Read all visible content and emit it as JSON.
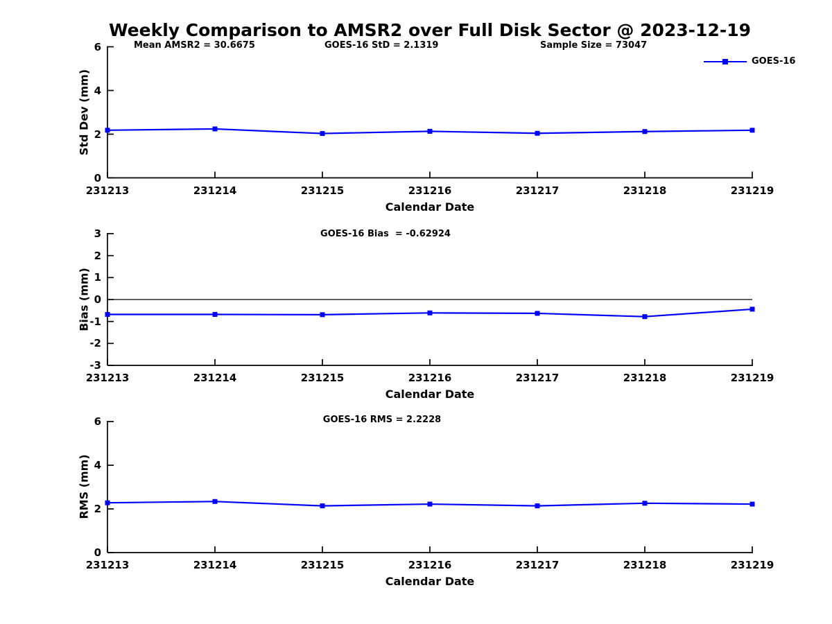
{
  "figure_title": "Weekly Comparison to AMSR2 over Full Disk Sector @ 2023-12-19",
  "legend": {
    "label": "GOES-16"
  },
  "colors": {
    "series": "#0000ff",
    "axis": "#000000",
    "background": "#ffffff"
  },
  "chart_data": [
    {
      "type": "line",
      "annotations": [
        "Mean AMSR2 = 30.6675",
        "GOES-16 StD = 2.1319",
        "Sample Size = 73047"
      ],
      "ylabel": "Std Dev (mm)",
      "xlabel": "Calendar Date",
      "ylim": [
        0,
        6
      ],
      "yticks": [
        0,
        2,
        4,
        6
      ],
      "grid": false,
      "legend_position": "top-right",
      "categories": [
        "231213",
        "231214",
        "231215",
        "231216",
        "231217",
        "231218",
        "231219"
      ],
      "series": [
        {
          "name": "GOES-16",
          "color": "#0000ff",
          "marker": "square",
          "values": [
            2.18,
            2.24,
            2.03,
            2.13,
            2.04,
            2.12,
            2.18
          ]
        }
      ]
    },
    {
      "type": "line",
      "annotation": "GOES-16 Bias  = -0.62924",
      "ylabel": "Bias (mm)",
      "xlabel": "Calendar Date",
      "ylim": [
        -3,
        3
      ],
      "yticks": [
        -3,
        -2,
        -1,
        0,
        1,
        2,
        3
      ],
      "zero_line": true,
      "grid": false,
      "categories": [
        "231213",
        "231214",
        "231215",
        "231216",
        "231217",
        "231218",
        "231219"
      ],
      "series": [
        {
          "name": "GOES-16",
          "color": "#0000ff",
          "marker": "square",
          "values": [
            -0.68,
            -0.68,
            -0.69,
            -0.61,
            -0.63,
            -0.78,
            -0.44
          ]
        }
      ]
    },
    {
      "type": "line",
      "annotation": "GOES-16 RMS = 2.2228",
      "ylabel": "RMS (mm)",
      "xlabel": "Calendar Date",
      "ylim": [
        0,
        6
      ],
      "yticks": [
        0,
        2,
        4,
        6
      ],
      "grid": false,
      "categories": [
        "231213",
        "231214",
        "231215",
        "231216",
        "231217",
        "231218",
        "231219"
      ],
      "series": [
        {
          "name": "GOES-16",
          "color": "#0000ff",
          "marker": "square",
          "values": [
            2.28,
            2.34,
            2.14,
            2.22,
            2.14,
            2.26,
            2.22
          ]
        }
      ]
    }
  ]
}
